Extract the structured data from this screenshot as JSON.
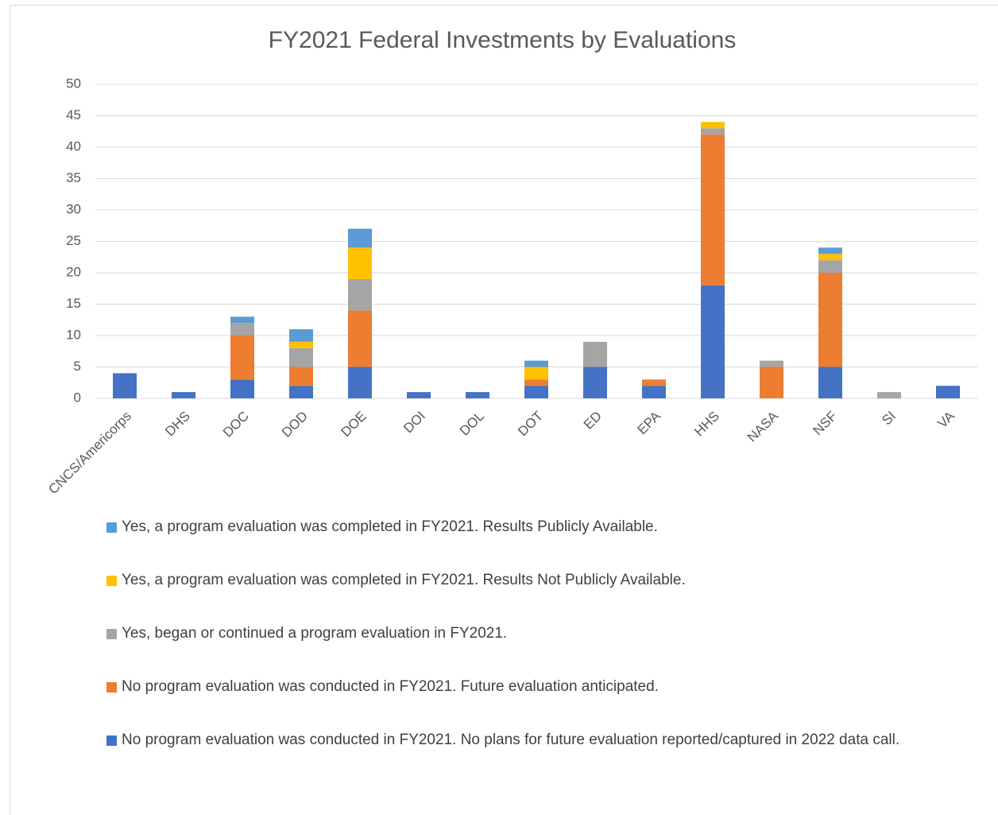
{
  "chart_data": {
    "type": "stacked_bar",
    "title": "FY2021 Federal Investments by Evaluations",
    "categories": [
      "CNCS/Americorps",
      "DHS",
      "DOC",
      "DOD",
      "DOE",
      "DOI",
      "DOL",
      "DOT",
      "ED",
      "EPA",
      "HHS",
      "NASA",
      "NSF",
      "SI",
      "VA"
    ],
    "series": [
      {
        "name": "No program evaluation was conducted in FY2021. No plans for future evaluation reported/captured in 2022 data call.",
        "color": "#4472c4",
        "values": [
          4,
          1,
          3,
          2,
          5,
          1,
          1,
          2,
          5,
          2,
          18,
          0,
          5,
          0,
          2
        ]
      },
      {
        "name": "No program evaluation was conducted in FY2021. Future evaluation anticipated.",
        "color": "#ed7d31",
        "values": [
          0,
          0,
          7,
          3,
          9,
          0,
          0,
          1,
          0,
          1,
          24,
          5,
          15,
          0,
          0
        ]
      },
      {
        "name": "Yes, began or continued a program evaluation in FY2021.",
        "color": "#a5a5a5",
        "values": [
          0,
          0,
          2,
          3,
          5,
          0,
          0,
          0,
          4,
          0,
          1,
          1,
          2,
          1,
          0
        ]
      },
      {
        "name": "Yes, a program evaluation was completed in FY2021. Results Not Publicly Available.",
        "color": "#ffc000",
        "values": [
          0,
          0,
          0,
          1,
          5,
          0,
          0,
          2,
          0,
          0,
          1,
          0,
          1,
          0,
          0
        ]
      },
      {
        "name": "Yes, a program evaluation was completed in FY2021. Results Publicly Available.",
        "color": "#5b9bd5",
        "values": [
          0,
          0,
          1,
          2,
          3,
          0,
          0,
          1,
          0,
          0,
          0,
          0,
          1,
          0,
          0
        ]
      }
    ],
    "ylim": [
      0,
      50
    ],
    "yticks": [
      0,
      5,
      10,
      15,
      20,
      25,
      30,
      35,
      40,
      45,
      50
    ],
    "grid": true
  }
}
